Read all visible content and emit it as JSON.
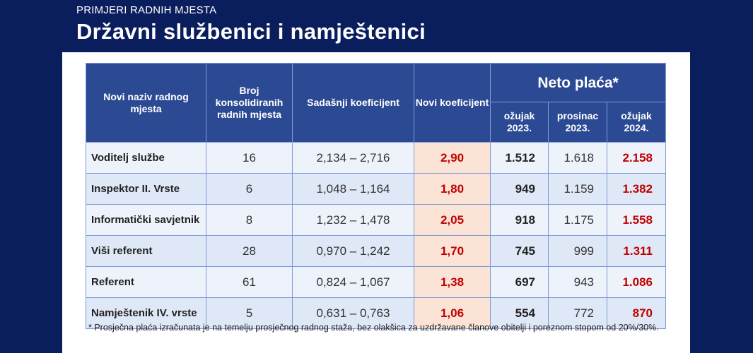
{
  "header": {
    "subtitle": "PRIMJERI RADNIH MJESTA",
    "title": "Državni službenici i namještenici"
  },
  "table": {
    "columns": {
      "name": "Novi naziv radnog mjesta",
      "count": "Broj konsolidiranih radnih mjesta",
      "current_coef": "Sadašnji koeficijent",
      "new_coef": "Novi koeficijent",
      "neto": "Neto plaća*",
      "neto_sub": [
        "ožujak 2023.",
        "prosinac 2023.",
        "ožujak 2024."
      ]
    },
    "rows": [
      {
        "name": "Voditelj službe",
        "count": "16",
        "current": "2,134 – 2,716",
        "new": "2,90",
        "n1": "1.512",
        "n2": "1.618",
        "n3": "2.158"
      },
      {
        "name": "Inspektor II. Vrste",
        "count": "6",
        "current": "1,048 – 1,164",
        "new": "1,80",
        "n1": "949",
        "n2": "1.159",
        "n3": "1.382"
      },
      {
        "name": "Informatički savjetnik",
        "count": "8",
        "current": "1,232 – 1,478",
        "new": "2,05",
        "n1": "918",
        "n2": "1.175",
        "n3": "1.558"
      },
      {
        "name": "Viši referent",
        "count": "28",
        "current": "0,970 – 1,242",
        "new": "1,70",
        "n1": "745",
        "n2": "999",
        "n3": "1.311"
      },
      {
        "name": "Referent",
        "count": "61",
        "current": "0,824 – 1,067",
        "new": "1,38",
        "n1": "697",
        "n2": "943",
        "n3": "1.086"
      },
      {
        "name": "Namještenik IV. vrste",
        "count": "5",
        "current": "0,631 – 0,763",
        "new": "1,06",
        "n1": "554",
        "n2": "772",
        "n3": "870"
      }
    ]
  },
  "footnote": "* Prosječna plaća izračunata je na temelju prosječnog radnog staža, bez olakšica za uzdržavane članove obitelji i poreznom stopom od 20%/30%.",
  "colors": {
    "background": "#0a1e5e",
    "header_cell": "#2c4a94",
    "highlight_cell": "#fbe3d6",
    "highlight_text": "#c00000"
  }
}
